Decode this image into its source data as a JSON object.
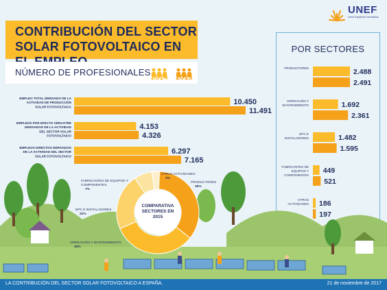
{
  "brand": {
    "name": "UNEF",
    "subtitle": "Unión Española Fotovoltaica",
    "color": "#2d3a8c"
  },
  "title": "CONTRIBUCIÓN DEL SECTOR SOLAR FOTOVOLTAICO EN EL EMPLEO",
  "subtitle": "NÚMERO DE PROFESIONALES",
  "legend": {
    "year1": "2014",
    "year2": "2015"
  },
  "colors": {
    "y2014": "#fbbb2a",
    "y2015": "#f5a11a",
    "accent": "#fbbb2a",
    "footer": "#1e73b5"
  },
  "sectors_title": "POR SECTORES",
  "footer": {
    "left": "LA CONTRIBUCIÓN DEL SECTOR SOLAR FOTOVOLTAICO A ESPAÑA.",
    "right": "21 de noviembre de 2017"
  },
  "chart_data": [
    {
      "type": "bar",
      "orientation": "horizontal",
      "categories": [
        "EMPLEO TOTAL DERIVADO DE LA ACTIVIDAD DE PRODUCCIÓN SOLAR FOTOVOLTAICA",
        "EMPLEOS POR EFECTO ARRASTRE DERIVADOS DE LA ACTIVIDAD DEL SECTOR SOLAR FOTOVOLTAICO",
        "EMPLEOS DIRECTOS DERIVADOS DE LA ACTIVIDAD DEL SECTOR SOLAR FOTOVOLTAICO"
      ],
      "series": [
        {
          "name": "2014",
          "values": [
            10450,
            4153,
            6297
          ],
          "labels": [
            "10.450",
            "4.153",
            "6.297"
          ]
        },
        {
          "name": "2015",
          "values": [
            11491,
            4326,
            7165
          ],
          "labels": [
            "11.491",
            "4.326",
            "7.165"
          ]
        }
      ]
    },
    {
      "type": "bar",
      "orientation": "horizontal",
      "title": "POR SECTORES",
      "categories": [
        "PRODUCTORES",
        "OPERACIÓN Y MANTENIMIENTO",
        "EPC E INSTALADORES",
        "FABRICANTES DE EQUIPOS Y COMPONENTES",
        "OTRAS ACTIVIDADES"
      ],
      "series": [
        {
          "name": "2014",
          "values": [
            2488,
            1692,
            1482,
            449,
            186
          ],
          "labels": [
            "2.488",
            "1.692",
            "1.482",
            "449",
            "186"
          ]
        },
        {
          "name": "2015",
          "values": [
            2491,
            2361,
            1595,
            521,
            197
          ],
          "labels": [
            "2.491",
            "2.361",
            "1.595",
            "521",
            "197"
          ]
        }
      ]
    },
    {
      "type": "pie",
      "title": "COMPARATIVA SECTORES EN 2015",
      "slices": [
        {
          "label": "PRODUCTORES",
          "value": 35,
          "text": "35%"
        },
        {
          "label": "OPERACIÓN Y MANTENIMIENTO",
          "value": 33,
          "text": "33%"
        },
        {
          "label": "EPC E INSTALADORES",
          "value": 22,
          "text": "22%"
        },
        {
          "label": "FABRICANTES DE EQUIPOS Y COMPONENTES",
          "value": 7,
          "text": "7%"
        },
        {
          "label": "OTRAS ACTIVIDADES",
          "value": 3,
          "text": "3%"
        }
      ],
      "colors": [
        "#f5a11a",
        "#fbbb2a",
        "#fcd36a",
        "#fde3a0",
        "#fff0cc"
      ]
    }
  ]
}
